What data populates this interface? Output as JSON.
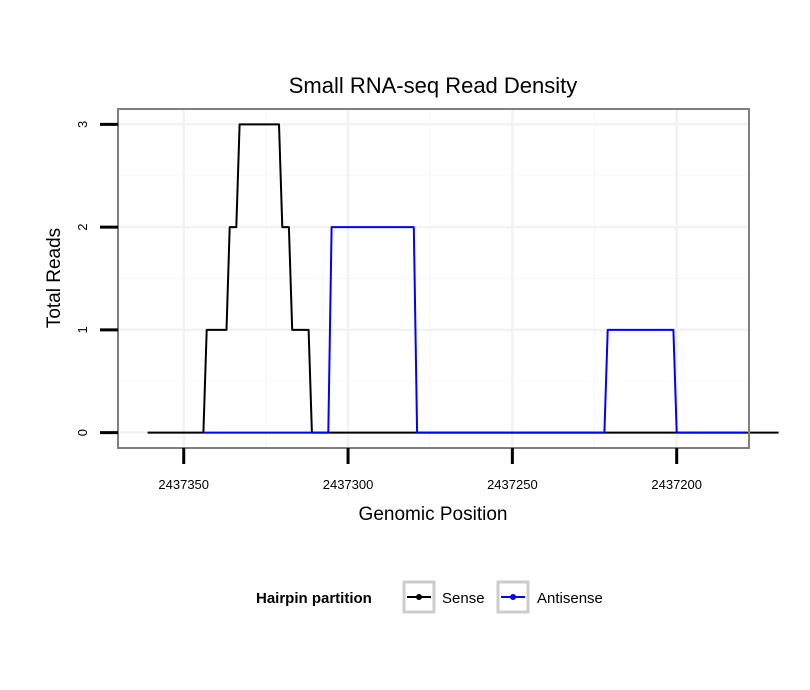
{
  "chart_data": {
    "type": "line",
    "title": "Small RNA-seq Read Density",
    "xlabel": "Genomic Position",
    "ylabel": "Total Reads",
    "x_reversed": true,
    "xlim": [
      2437370,
      2437178
    ],
    "ylim": [
      -0.15,
      3.15
    ],
    "x_ticks": [
      2437350,
      2437300,
      2437250,
      2437200
    ],
    "x_tick_labels": [
      "2437350",
      "2437300",
      "2437250",
      "2437200"
    ],
    "y_ticks": [
      0,
      1,
      2,
      3
    ],
    "y_tick_labels": [
      "0",
      "1",
      "2",
      "3"
    ],
    "grid": true,
    "legend": {
      "title": "Hairpin partition",
      "position": "bottom",
      "entries": [
        {
          "label": "Sense",
          "color": "#000000"
        },
        {
          "label": "Antisense",
          "color": "#0000ff"
        }
      ]
    },
    "series": [
      {
        "name": "Sense",
        "color": "#000000",
        "x": [
          2437361,
          2437344,
          2437343,
          2437337,
          2437336,
          2437334,
          2437333,
          2437321,
          2437320,
          2437318,
          2437317,
          2437312,
          2437311,
          2437310,
          2437169
        ],
        "y": [
          0,
          0,
          1,
          1,
          2,
          2,
          3,
          3,
          2,
          2,
          1,
          1,
          0,
          0,
          0
        ]
      },
      {
        "name": "Antisense",
        "color": "#0000ff",
        "x": [
          2437344,
          2437311,
          2437306,
          2437305,
          2437280,
          2437279,
          2437222,
          2437221,
          2437201,
          2437200,
          2437179
        ],
        "y": [
          0,
          0,
          0,
          2,
          2,
          0,
          0,
          1,
          1,
          0,
          0
        ]
      }
    ]
  }
}
